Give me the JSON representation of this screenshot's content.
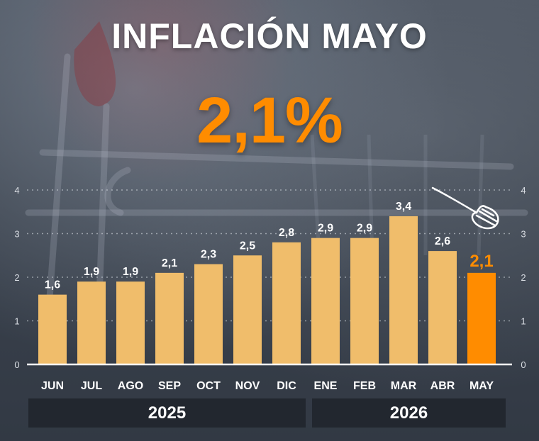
{
  "header": {
    "title": "INFLACIÓN MAYO",
    "headline": "2,1%"
  },
  "colors": {
    "bar": "#f0bd6b",
    "bar_highlight": "#ff8c00",
    "headline": "#ff8c00",
    "text": "#ffffff",
    "axis": "#d9dde3"
  },
  "chart_data": {
    "type": "bar",
    "categories": [
      "JUN",
      "JUL",
      "AGO",
      "SEP",
      "OCT",
      "NOV",
      "DIC",
      "ENE",
      "FEB",
      "MAR",
      "ABR",
      "MAY"
    ],
    "values": [
      1.6,
      1.9,
      1.9,
      2.1,
      2.3,
      2.5,
      2.8,
      2.9,
      2.9,
      3.4,
      2.6,
      2.1
    ],
    "value_labels": [
      "1,6",
      "1,9",
      "1,9",
      "2,1",
      "2,3",
      "2,5",
      "2,8",
      "2,9",
      "2,9",
      "3,4",
      "2,6",
      "2,1"
    ],
    "highlight_index": 11,
    "ylim": [
      0,
      4
    ],
    "yticks": [
      0,
      1,
      2,
      3,
      4
    ],
    "ytick_labels": [
      "0",
      "1",
      "2",
      "3",
      "4"
    ],
    "grid": "dotted horizontal",
    "year_groups": [
      {
        "label": "2025",
        "from": 0,
        "to": 6
      },
      {
        "label": "2026",
        "from": 7,
        "to": 11
      }
    ]
  }
}
